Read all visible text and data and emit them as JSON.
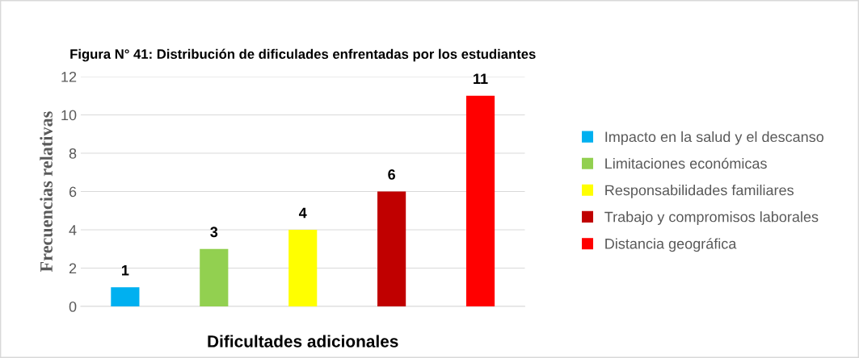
{
  "chart_data": {
    "type": "bar",
    "title": "Figura N° 41: Distribución de dificulades enfrentadas por los estudiantes",
    "xlabel": "Dificultades adicionales",
    "ylabel": "Frecuencias relativas",
    "categories": [
      null,
      null,
      null,
      null,
      null
    ],
    "series": [
      {
        "name": "Impacto en la salud y el descanso",
        "color": "#00b0f0",
        "values": [
          1,
          null,
          null,
          null,
          null
        ]
      },
      {
        "name": "Limitaciones económicas",
        "color": "#92d050",
        "values": [
          null,
          3,
          null,
          null,
          null
        ]
      },
      {
        "name": "Responsabilidades familiares",
        "color": "#ffff00",
        "values": [
          null,
          null,
          4,
          null,
          null
        ]
      },
      {
        "name": "Trabajo y compromisos laborales",
        "color": "#c00000",
        "values": [
          null,
          null,
          null,
          6,
          null
        ]
      },
      {
        "name": "Distancia geográfica",
        "color": "#ff0000",
        "values": [
          null,
          null,
          null,
          null,
          11
        ]
      }
    ],
    "ylim": [
      0,
      12
    ],
    "yticks": [
      0,
      2,
      4,
      6,
      8,
      10,
      12
    ],
    "grid": "y",
    "legend": "right",
    "data_labels": true
  }
}
